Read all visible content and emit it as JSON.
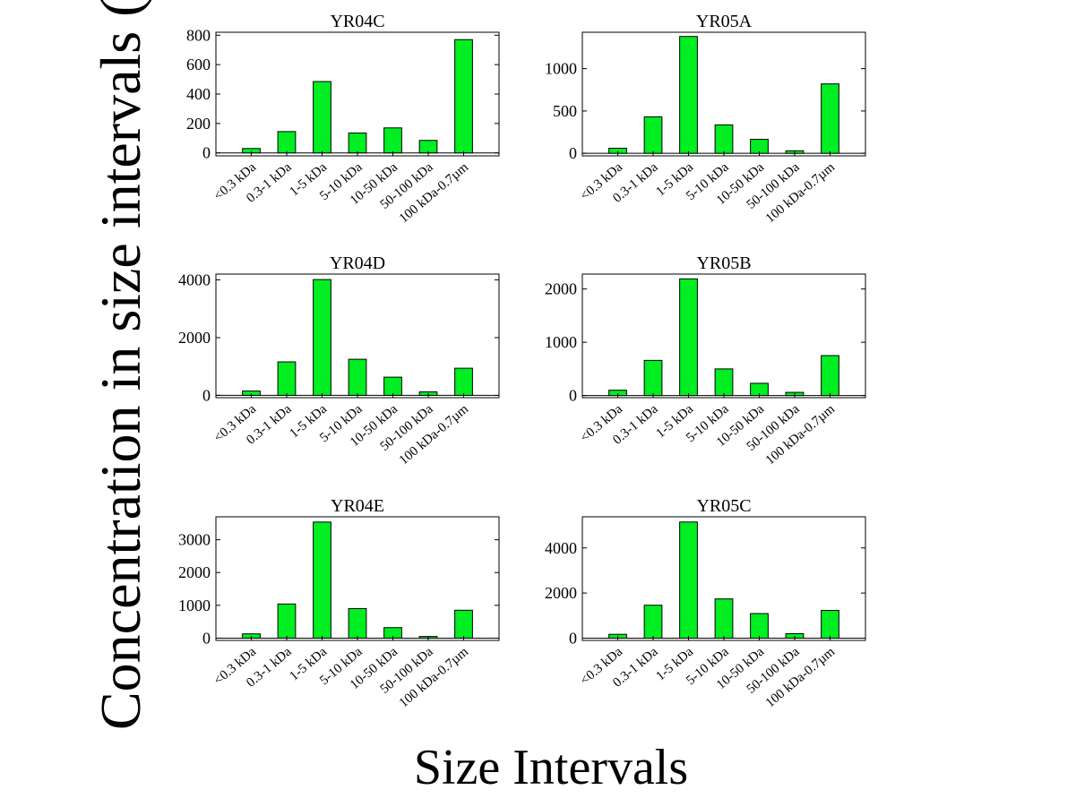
{
  "figure": {
    "ylabel": "Concentration in size intervals (ppb-QS",
    "xlabel": "Size Intervals",
    "bar_color": "#00ee22",
    "edge_color": "#000000"
  },
  "chart_data": [
    {
      "type": "bar",
      "title": "YR04C",
      "categories": [
        "<0.3 kDa",
        "0.3-1 kDa",
        "1-5 kDa",
        "5-10 kDa",
        "10-50 kDa",
        "50-100 kDa",
        "100 kDa-0.7µm"
      ],
      "values": [
        30,
        145,
        485,
        135,
        170,
        85,
        770
      ],
      "ylim": [
        -20,
        820
      ],
      "yticks": [
        0,
        200,
        400,
        600,
        800
      ]
    },
    {
      "type": "bar",
      "title": "YR05A",
      "categories": [
        "<0.3 kDa",
        "0.3-1 kDa",
        "1-5 kDa",
        "5-10 kDa",
        "10-50 kDa",
        "50-100 kDa",
        "100 kDa-0.7µm"
      ],
      "values": [
        60,
        430,
        1380,
        335,
        165,
        30,
        820
      ],
      "ylim": [
        -30,
        1430
      ],
      "yticks": [
        0,
        500,
        1000
      ]
    },
    {
      "type": "bar",
      "title": "YR04D",
      "categories": [
        "<0.3 kDa",
        "0.3-1 kDa",
        "1-5 kDa",
        "5-10 kDa",
        "10-50 kDa",
        "50-100 kDa",
        "100 kDa-0.7µm"
      ],
      "values": [
        150,
        1160,
        4010,
        1250,
        630,
        120,
        940
      ],
      "ylim": [
        -80,
        4200
      ],
      "yticks": [
        0,
        2000,
        4000
      ]
    },
    {
      "type": "bar",
      "title": "YR05B",
      "categories": [
        "<0.3 kDa",
        "0.3-1 kDa",
        "1-5 kDa",
        "5-10 kDa",
        "10-50 kDa",
        "50-100 kDa",
        "100 kDa-0.7µm"
      ],
      "values": [
        100,
        660,
        2190,
        500,
        230,
        60,
        750
      ],
      "ylim": [
        -40,
        2280
      ],
      "yticks": [
        0,
        1000,
        2000
      ]
    },
    {
      "type": "bar",
      "title": "YR04E",
      "categories": [
        "<0.3 kDa",
        "0.3-1 kDa",
        "1-5 kDa",
        "5-10 kDa",
        "10-50 kDa",
        "50-100 kDa",
        "100 kDa-0.7µm"
      ],
      "values": [
        130,
        1040,
        3540,
        900,
        320,
        50,
        850
      ],
      "ylim": [
        -70,
        3700
      ],
      "yticks": [
        0,
        1000,
        2000,
        3000
      ]
    },
    {
      "type": "bar",
      "title": "YR05C",
      "categories": [
        "<0.3 kDa",
        "0.3-1 kDa",
        "1-5 kDa",
        "5-10 kDa",
        "10-50 kDa",
        "50-100 kDa",
        "100 kDa-0.7µm"
      ],
      "values": [
        170,
        1460,
        5150,
        1740,
        1090,
        200,
        1230
      ],
      "ylim": [
        -100,
        5380
      ],
      "yticks": [
        0,
        2000,
        4000
      ]
    }
  ]
}
